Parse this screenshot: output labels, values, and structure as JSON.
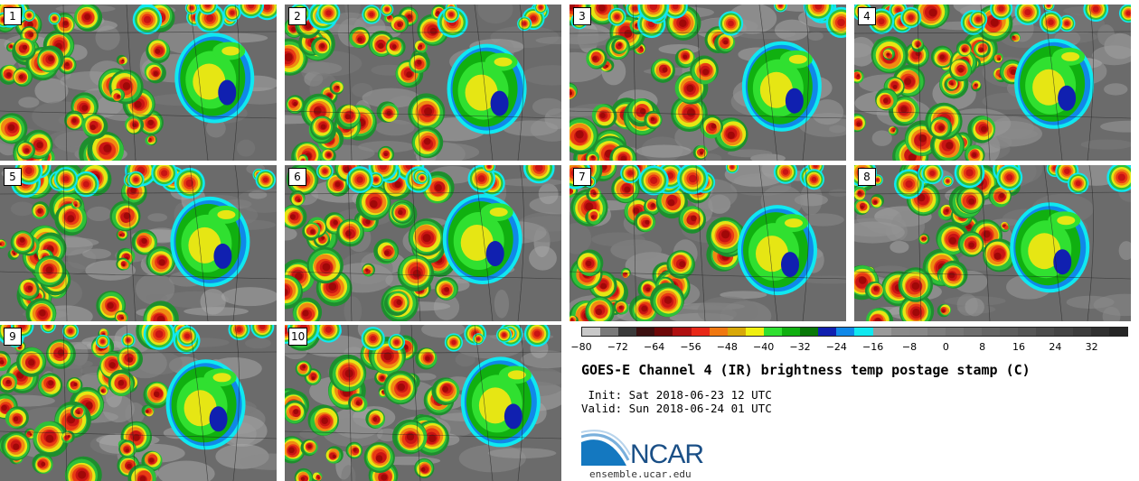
{
  "title": "GOES-E Channel 4 (IR) brightness temp postage stamp (C)",
  "init": " Init: Sat 2018-06-23 12 UTC",
  "valid": "Valid: Sun 2018-06-24 01 UTC",
  "panels": [
    "1",
    "2",
    "3",
    "4",
    "5",
    "6",
    "7",
    "8",
    "9",
    "10"
  ],
  "colorbar": {
    "colors": [
      "#c8c8c8",
      "#7a7a7a",
      "#3a3a3a",
      "#3c1010",
      "#6e0808",
      "#b01010",
      "#e82818",
      "#f07810",
      "#d8a808",
      "#f0f010",
      "#30e030",
      "#10b010",
      "#087808",
      "#1020b0",
      "#1088e8",
      "#10e8f0",
      "#9a9a9a",
      "#8a8a8a",
      "#888888",
      "#7e7e7e",
      "#767676",
      "#6e6e6e",
      "#666666",
      "#5e5e5e",
      "#565656",
      "#4c4c4c",
      "#444444",
      "#3c3c3c",
      "#303030",
      "#262626"
    ],
    "ticks": [
      "−80",
      "−72",
      "−64",
      "−56",
      "−48",
      "−40",
      "−32",
      "−24",
      "−16",
      "−8",
      "0",
      "8",
      "16",
      "24",
      "32"
    ],
    "range": [
      -80,
      40
    ]
  },
  "logo": {
    "text": "NCAR",
    "site": "ensemble.ucar.edu"
  }
}
